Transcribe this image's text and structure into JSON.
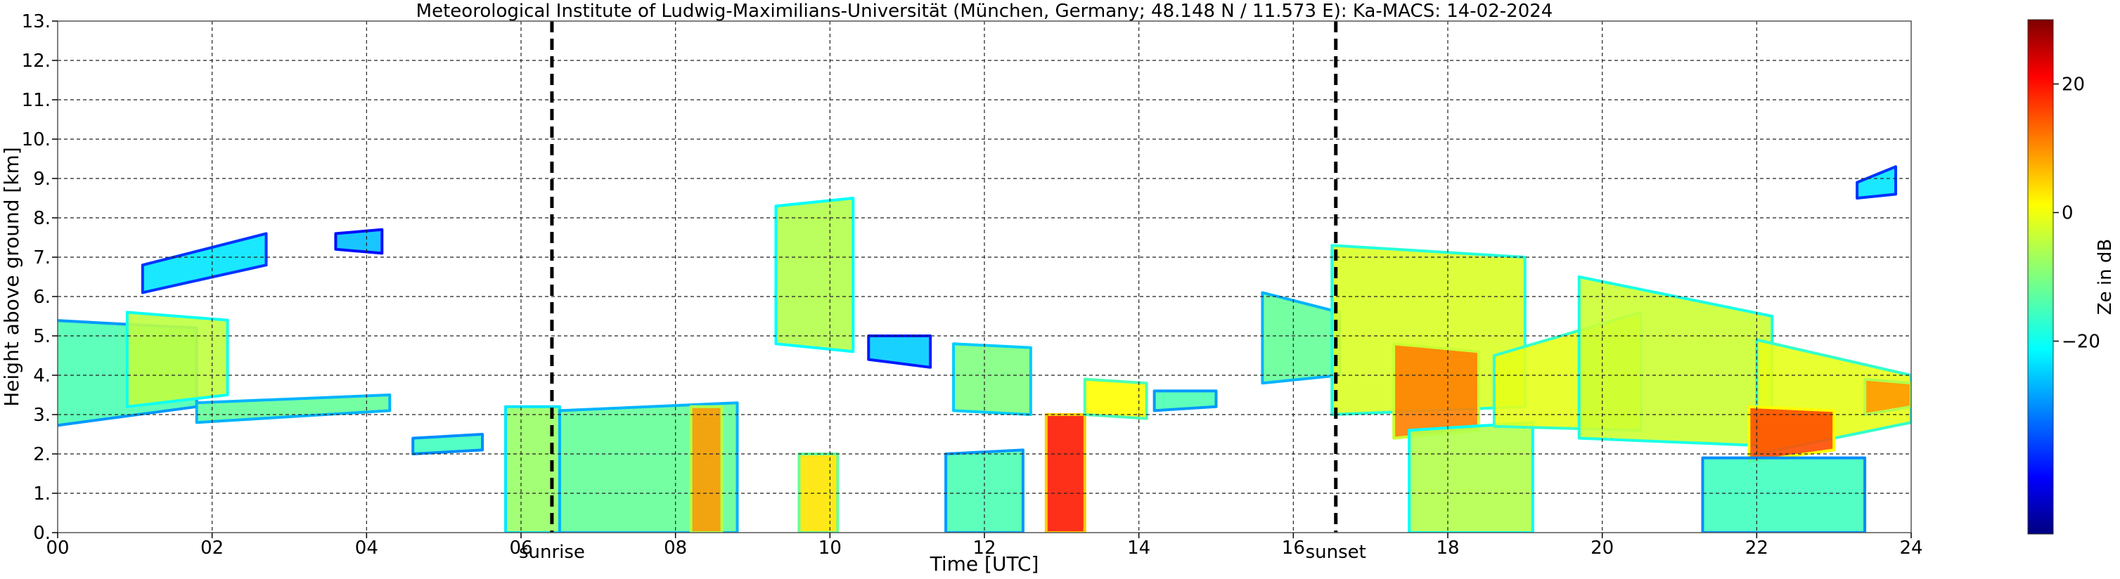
{
  "chart_data": {
    "type": "heatmap",
    "title": "Meteorological Institute of Ludwig-Maximilians-Universität (München, Germany; 48.148 N / 11.573 E):    Ka-MACS: 14-02-2024",
    "xlabel": "Time [UTC]",
    "ylabel": "Height above ground [km]",
    "xlim": [
      0,
      24
    ],
    "ylim": [
      0,
      13
    ],
    "x_ticks": [
      0,
      2,
      4,
      6,
      8,
      10,
      12,
      14,
      16,
      18,
      20,
      22,
      24
    ],
    "x_tick_labels": [
      "00",
      "02",
      "04",
      "06",
      "08",
      "10",
      "12",
      "14",
      "16",
      "18",
      "20",
      "22",
      "24"
    ],
    "y_ticks": [
      0,
      1,
      2,
      3,
      4,
      5,
      6,
      7,
      8,
      9,
      10,
      11,
      12,
      13
    ],
    "y_tick_labels": [
      "0.",
      "1.",
      "2.",
      "3.",
      "4.",
      "5.",
      "6.",
      "7.",
      "8.",
      "9.",
      "10.",
      "11.",
      "12.",
      "13."
    ],
    "grid": true,
    "annotations": [
      {
        "label": "sunrise",
        "x": 6.4
      },
      {
        "label": "sunset",
        "x": 16.55
      }
    ],
    "colorbar": {
      "label": "Ze in dB",
      "ticks": [
        20,
        0,
        -20
      ],
      "tick_labels": [
        "20",
        "0",
        "−20"
      ],
      "range": [
        -50,
        30
      ],
      "colormap": "jet"
    },
    "regions": [
      {
        "t": [
          -0.1,
          1.8
        ],
        "b": [
          2.7,
          3.2
        ],
        "top": [
          5.4,
          5.2
        ],
        "ze": -14
      },
      {
        "t": [
          1.8,
          4.3
        ],
        "b": [
          2.8,
          3.1
        ],
        "top": [
          3.3,
          3.5
        ],
        "ze": -12
      },
      {
        "t": [
          0.9,
          2.2
        ],
        "b": [
          3.2,
          3.5
        ],
        "top": [
          5.6,
          5.4
        ],
        "ze": -5
      },
      {
        "t": [
          1.1,
          2.7
        ],
        "b": [
          6.1,
          6.8
        ],
        "top": [
          6.8,
          7.6
        ],
        "ze": -22
      },
      {
        "t": [
          3.6,
          4.2
        ],
        "b": [
          7.2,
          7.1
        ],
        "top": [
          7.6,
          7.7
        ],
        "ze": -25
      },
      {
        "t": [
          4.6,
          5.5
        ],
        "b": [
          2.0,
          2.1
        ],
        "top": [
          2.4,
          2.5
        ],
        "ze": -15
      },
      {
        "t": [
          5.8,
          6.5
        ],
        "b": [
          0.0,
          0.0
        ],
        "top": [
          3.2,
          3.2
        ],
        "ze": -8
      },
      {
        "t": [
          6.5,
          8.8
        ],
        "b": [
          0.0,
          0.0
        ],
        "top": [
          3.1,
          3.3
        ],
        "ze": -12
      },
      {
        "t": [
          8.2,
          8.6
        ],
        "b": [
          0.0,
          0.0
        ],
        "top": [
          3.2,
          3.2
        ],
        "ze": 8
      },
      {
        "t": [
          9.3,
          10.3
        ],
        "b": [
          4.8,
          4.6
        ],
        "top": [
          8.3,
          8.5
        ],
        "ze": -6
      },
      {
        "t": [
          9.6,
          10.1
        ],
        "b": [
          0.0,
          0.0
        ],
        "top": [
          2.0,
          2.0
        ],
        "ze": 2
      },
      {
        "t": [
          10.5,
          11.3
        ],
        "b": [
          4.4,
          4.2
        ],
        "top": [
          5.0,
          5.0
        ],
        "ze": -24
      },
      {
        "t": [
          11.6,
          12.6
        ],
        "b": [
          3.1,
          3.0
        ],
        "top": [
          4.8,
          4.7
        ],
        "ze": -10
      },
      {
        "t": [
          11.5,
          12.5
        ],
        "b": [
          0.0,
          0.0
        ],
        "top": [
          2.0,
          2.1
        ],
        "ze": -14
      },
      {
        "t": [
          12.8,
          13.3
        ],
        "b": [
          0.0,
          0.0
        ],
        "top": [
          3.0,
          3.0
        ],
        "ze": 18
      },
      {
        "t": [
          13.3,
          14.1
        ],
        "b": [
          3.0,
          2.9
        ],
        "top": [
          3.9,
          3.8
        ],
        "ze": 0
      },
      {
        "t": [
          14.2,
          15.0
        ],
        "b": [
          3.1,
          3.2
        ],
        "top": [
          3.6,
          3.6
        ],
        "ze": -14
      },
      {
        "t": [
          15.6,
          16.6
        ],
        "b": [
          3.8,
          4.0
        ],
        "top": [
          6.1,
          5.6
        ],
        "ze": -12
      },
      {
        "t": [
          16.5,
          19.0
        ],
        "b": [
          3.0,
          3.2
        ],
        "top": [
          7.3,
          7.0
        ],
        "ze": -3
      },
      {
        "t": [
          17.3,
          18.4
        ],
        "b": [
          2.4,
          2.6
        ],
        "top": [
          4.8,
          4.6
        ],
        "ze": 10
      },
      {
        "t": [
          17.5,
          19.1
        ],
        "b": [
          0.0,
          0.0
        ],
        "top": [
          2.6,
          2.8
        ],
        "ze": -6
      },
      {
        "t": [
          18.6,
          20.5
        ],
        "b": [
          2.7,
          2.6
        ],
        "top": [
          4.5,
          5.6
        ],
        "ze": -2
      },
      {
        "t": [
          19.7,
          22.2
        ],
        "b": [
          2.4,
          2.2
        ],
        "top": [
          6.5,
          5.5
        ],
        "ze": -4
      },
      {
        "t": [
          22.0,
          24.0
        ],
        "b": [
          2.0,
          2.8
        ],
        "top": [
          4.9,
          4.0
        ],
        "ze": -2
      },
      {
        "t": [
          21.9,
          23.0
        ],
        "b": [
          1.8,
          2.1
        ],
        "top": [
          3.2,
          3.1
        ],
        "ze": 14
      },
      {
        "t": [
          23.4,
          24.0
        ],
        "b": [
          3.0,
          3.2
        ],
        "top": [
          3.9,
          3.8
        ],
        "ze": 8
      },
      {
        "t": [
          21.3,
          23.4
        ],
        "b": [
          0.0,
          0.0
        ],
        "top": [
          1.9,
          1.9
        ],
        "ze": -15
      },
      {
        "t": [
          23.3,
          23.8
        ],
        "b": [
          8.5,
          8.6
        ],
        "top": [
          8.9,
          9.3
        ],
        "ze": -22
      }
    ]
  }
}
